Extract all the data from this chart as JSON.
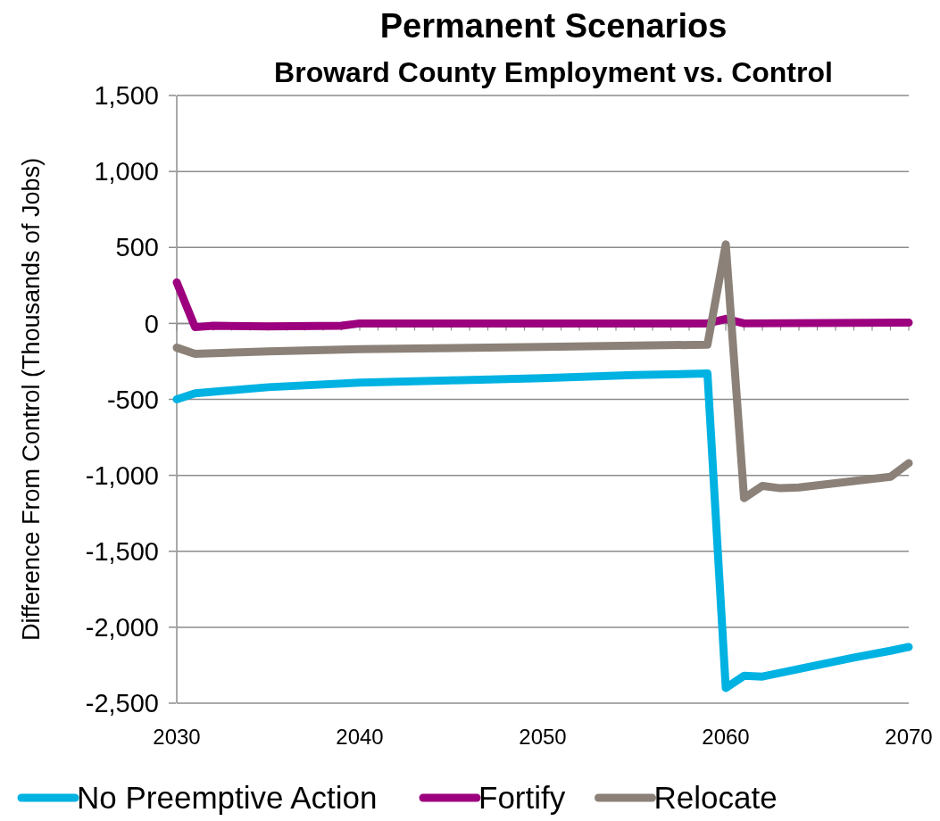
{
  "chart_data": {
    "type": "line",
    "title": "Permanent Scenarios",
    "subtitle": "Broward County Employment vs. Control",
    "ylabel": "Difference From Control (Thousands of Jobs)",
    "xlim": [
      2030,
      2070
    ],
    "xticks": [
      2030,
      2040,
      2050,
      2060,
      2070
    ],
    "ylim": [
      -2500,
      1500
    ],
    "yticks": [
      {
        "value": -2500,
        "label": "-2,500"
      },
      {
        "value": -2000,
        "label": "-2,000"
      },
      {
        "value": -1500,
        "label": "-1,500"
      },
      {
        "value": -1000,
        "label": "-1,000"
      },
      {
        "value": -500,
        "label": "-500"
      },
      {
        "value": 0,
        "label": "0"
      },
      {
        "value": 500,
        "label": "500"
      },
      {
        "value": 1000,
        "label": "1,000"
      },
      {
        "value": 1500,
        "label": "1,500"
      }
    ],
    "grid": "y",
    "legend": "bottom",
    "marker": "none",
    "line_style": "solid",
    "series": [
      {
        "name": "No Preemptive Action",
        "color": "#00b2e2",
        "x": [
          2030,
          2031,
          2035,
          2040,
          2045,
          2050,
          2055,
          2059,
          2060,
          2061,
          2062,
          2063,
          2065,
          2067,
          2069,
          2070
        ],
        "values": [
          -500,
          -460,
          -420,
          -390,
          -375,
          -360,
          -340,
          -330,
          -2400,
          -2320,
          -2325,
          -2300,
          -2250,
          -2200,
          -2155,
          -2130
        ]
      },
      {
        "name": "Fortify",
        "color": "#9c007e",
        "x": [
          2030,
          2031,
          2032,
          2035,
          2039,
          2040,
          2059,
          2060,
          2061,
          2070
        ],
        "values": [
          270,
          -25,
          -15,
          -20,
          -15,
          0,
          0,
          30,
          0,
          5
        ]
      },
      {
        "name": "Relocate",
        "color": "#8b8178",
        "x": [
          2030,
          2031,
          2035,
          2040,
          2050,
          2059,
          2060,
          2061,
          2062,
          2063,
          2064,
          2069,
          2070
        ],
        "values": [
          -160,
          -200,
          -185,
          -170,
          -155,
          -140,
          520,
          -1150,
          -1070,
          -1085,
          -1080,
          -1010,
          -920
        ]
      }
    ]
  }
}
